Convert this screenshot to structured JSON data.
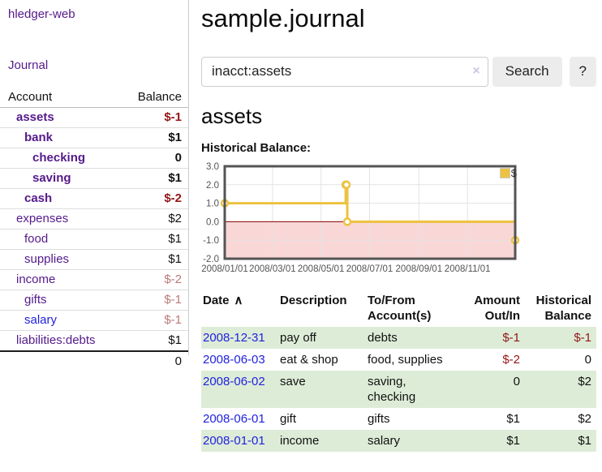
{
  "app": {
    "title": "hledger-web"
  },
  "sidebar": {
    "journal_label": "Journal",
    "headers": {
      "account": "Account",
      "balance": "Balance"
    },
    "accounts": [
      {
        "name": "assets",
        "balance": "$-1",
        "indent": 1,
        "bold": true,
        "balance_style": "neg-strong"
      },
      {
        "name": "bank",
        "balance": "$1",
        "indent": 2,
        "bold": true,
        "balance_style": "pos"
      },
      {
        "name": "checking",
        "balance": "0",
        "indent": 3,
        "bold": true,
        "balance_style": "pos"
      },
      {
        "name": "saving",
        "balance": "$1",
        "indent": 3,
        "bold": true,
        "balance_style": "pos"
      },
      {
        "name": "cash",
        "balance": "$-2",
        "indent": 2,
        "bold": true,
        "balance_style": "neg-strong"
      },
      {
        "name": "expenses",
        "balance": "$2",
        "indent": 1,
        "bold": false,
        "balance_style": "pos"
      },
      {
        "name": "food",
        "balance": "$1",
        "indent": 2,
        "bold": false,
        "balance_style": "pos"
      },
      {
        "name": "supplies",
        "balance": "$1",
        "indent": 2,
        "bold": false,
        "balance_style": "pos"
      },
      {
        "name": "income",
        "balance": "$-2",
        "indent": 1,
        "bold": false,
        "balance_style": "neg-soft"
      },
      {
        "name": "gifts",
        "balance": "$-1",
        "indent": 2,
        "bold": false,
        "balance_style": "neg-soft"
      },
      {
        "name": "salary",
        "balance": "$-1",
        "indent": 2,
        "bold": false,
        "balance_style": "neg-soft",
        "link_style": "unvisited"
      },
      {
        "name": "liabilities:debts",
        "balance": "$1",
        "indent": 1,
        "bold": false,
        "balance_style": "pos"
      }
    ],
    "total": "0"
  },
  "main": {
    "title": "sample.journal",
    "search": {
      "value": "inacct:assets",
      "clear_icon": "×",
      "search_button": "Search",
      "help_button": "?"
    },
    "account_heading": "assets",
    "chart_title": "Historical Balance:"
  },
  "chart_data": {
    "type": "line",
    "step": true,
    "title": "Historical Balance",
    "legend": "$",
    "legend_position": "top-right",
    "x_min": "2008-01-01",
    "x_max": "2008-12-31",
    "ylim": [
      -2.0,
      3.0
    ],
    "yticks": [
      3.0,
      2.0,
      1.0,
      0.0,
      -1.0,
      -2.0
    ],
    "xticks": [
      "2008/01/01",
      "2008/03/01",
      "2008/05/01",
      "2008/07/01",
      "2008/09/01",
      "2008/11/01"
    ],
    "points": [
      {
        "date": "2008-01-01",
        "value": 1
      },
      {
        "date": "2008-06-01",
        "value": 2
      },
      {
        "date": "2008-06-02",
        "value": 2
      },
      {
        "date": "2008-06-03",
        "value": 0
      },
      {
        "date": "2008-12-31",
        "value": -1
      }
    ],
    "grid": true,
    "colors": {
      "line": "#edc240",
      "point_fill": "#ffffff",
      "negative_region": "#f9d7d7",
      "zero_line": "#8b0000",
      "grid": "#e3e3e3",
      "border": "#545454",
      "tick_text": "#545454"
    }
  },
  "register": {
    "headers": {
      "date": "Date",
      "sort_indicator": "∧",
      "description": "Description",
      "accounts": "To/From Account(s)",
      "amount": "Amount Out/In",
      "balance": "Historical Balance"
    },
    "rows": [
      {
        "date": "2008-12-31",
        "description": "pay off",
        "accounts": "debts",
        "amount": "$-1",
        "balance": "$-1",
        "amount_neg": true,
        "balance_neg": true,
        "highlight": true
      },
      {
        "date": "2008-06-03",
        "description": "eat & shop",
        "accounts": "food, supplies",
        "amount": "$-2",
        "balance": "0",
        "amount_neg": true,
        "balance_neg": false,
        "highlight": false
      },
      {
        "date": "2008-06-02",
        "description": "save",
        "accounts": "saving, checking",
        "amount": "0",
        "balance": "$2",
        "amount_neg": false,
        "balance_neg": false,
        "highlight": true
      },
      {
        "date": "2008-06-01",
        "description": "gift",
        "accounts": "gifts",
        "amount": "$1",
        "balance": "$2",
        "amount_neg": false,
        "balance_neg": false,
        "highlight": false
      },
      {
        "date": "2008-01-01",
        "description": "income",
        "accounts": "salary",
        "amount": "$1",
        "balance": "$1",
        "amount_neg": false,
        "balance_neg": false,
        "highlight": true
      }
    ]
  },
  "colors": {
    "link_purple": "#551a8b",
    "link_blue": "#2222dd",
    "neg_strong": "#941616",
    "neg_soft": "#bd7878",
    "row_green": "#ddecd7"
  }
}
